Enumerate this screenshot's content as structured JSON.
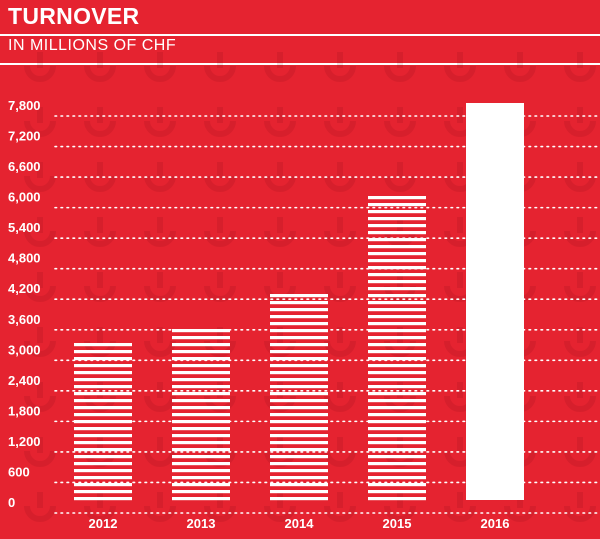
{
  "title": "TURNOVER",
  "subtitle": "IN MILLIONS OF CHF",
  "colors": {
    "background": "#e52330",
    "foreground": "#ffffff"
  },
  "chart_data": {
    "type": "bar",
    "title": "TURNOVER",
    "ylabel": "IN MILLIONS OF CHF",
    "xlabel": "",
    "categories": [
      "2012",
      "2013",
      "2014",
      "2015",
      "2016"
    ],
    "values": [
      3150,
      3480,
      4150,
      6100,
      7800
    ],
    "bar_styles": [
      "striped",
      "striped",
      "striped",
      "striped",
      "solid"
    ],
    "yticks": [
      0,
      600,
      1200,
      1800,
      2400,
      3000,
      3600,
      4200,
      4800,
      5400,
      6000,
      6600,
      7200,
      7800
    ],
    "ytick_labels": [
      "0",
      "600",
      "1,200",
      "1,800",
      "2,400",
      "3,000",
      "3,600",
      "4,200",
      "4,800",
      "5,400",
      "6,000",
      "6,600",
      "7,200",
      "7,800"
    ],
    "ylim": [
      0,
      7800
    ],
    "grid": "dotted horizontal",
    "legend": "none"
  }
}
